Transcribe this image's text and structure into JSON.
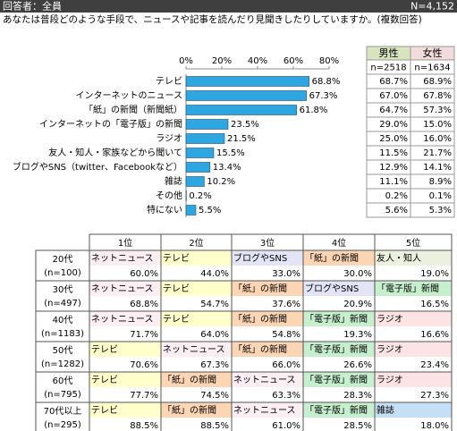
{
  "header": {
    "left": "回答者：全員",
    "right": "N=4,152"
  },
  "question": "あなたは普段どのような手段で、ニュースや記事を読んだり見聞きしたりしていますか。(複数回答)",
  "chart_data": {
    "type": "bar",
    "orientation": "horizontal",
    "categories": [
      "テレビ",
      "インターネットのニュース",
      "「紙」の新聞（新聞紙）",
      "インターネットの「電子版」の新聞",
      "ラジオ",
      "友人・知人・家族などから聞いて",
      "ブログやSNS（twitter、Facebookなど）",
      "雑誌",
      "その他",
      "特にない"
    ],
    "values": [
      68.8,
      67.3,
      61.8,
      23.5,
      21.5,
      15.5,
      13.4,
      10.2,
      0.2,
      5.5
    ],
    "value_labels": [
      "68.8%",
      "67.3%",
      "61.8%",
      "23.5%",
      "21.5%",
      "15.5%",
      "13.4%",
      "10.2%",
      "0.2%",
      "5.5%"
    ],
    "color": "#2ea7e0",
    "xlim": [
      0,
      80
    ],
    "xticks": [
      {
        "value": 0,
        "label": "0%"
      },
      {
        "value": 20,
        "label": "20%"
      },
      {
        "value": 40,
        "label": "40%"
      },
      {
        "value": 60,
        "label": "60%"
      },
      {
        "value": 80,
        "label": "80%"
      }
    ]
  },
  "gender_table": {
    "columns": [
      {
        "name": "男性",
        "n": "n=2518",
        "color": "#d7e4bd",
        "values": [
          "68.7%",
          "67.0%",
          "64.7%",
          "29.0%",
          "25.0%",
          "11.5%",
          "12.9%",
          "11.1%",
          "0.2%",
          "5.6%"
        ]
      },
      {
        "name": "女性",
        "n": "n=1634",
        "color": "#f2dcdb",
        "values": [
          "68.9%",
          "67.8%",
          "57.3%",
          "15.0%",
          "16.0%",
          "21.7%",
          "14.1%",
          "8.9%",
          "0.1%",
          "5.3%"
        ]
      }
    ]
  },
  "rank_table": {
    "headers": [
      "1位",
      "2位",
      "3位",
      "4位",
      "5位"
    ],
    "rows": [
      {
        "age": "20代",
        "n": "(n=100)",
        "cells": [
          {
            "label": "ネットニュース",
            "value": "60.0%",
            "color": "#fdeef4"
          },
          {
            "label": "テレビ",
            "value": "44.0%",
            "color": "#ffffcc"
          },
          {
            "label": "ブログやSNS",
            "value": "33.0%",
            "color": "#e4e4f7"
          },
          {
            "label": "「紙」の新聞",
            "value": "30.0%",
            "color": "#fcd5b5"
          },
          {
            "label": "友人・知人",
            "value": "19.0%",
            "color": "#ebf1de"
          }
        ]
      },
      {
        "age": "30代",
        "n": "(n=497)",
        "cells": [
          {
            "label": "ネットニュース",
            "value": "68.8%",
            "color": "#fdeef4"
          },
          {
            "label": "テレビ",
            "value": "54.7%",
            "color": "#ffffcc"
          },
          {
            "label": "「紙」の新聞",
            "value": "37.6%",
            "color": "#fcd5b5"
          },
          {
            "label": "ブログやSNS",
            "value": "20.9%",
            "color": "#e4e4f7"
          },
          {
            "label": "「電子版」新聞",
            "value": "16.5%",
            "color": "#c6efce"
          }
        ]
      },
      {
        "age": "40代",
        "n": "(n=1183)",
        "cells": [
          {
            "label": "ネットニュース",
            "value": "71.7%",
            "color": "#fdeef4"
          },
          {
            "label": "テレビ",
            "value": "64.0%",
            "color": "#ffffcc"
          },
          {
            "label": "「紙」の新聞",
            "value": "54.8%",
            "color": "#fcd5b5"
          },
          {
            "label": "「電子版」新聞",
            "value": "19.3%",
            "color": "#c6efce"
          },
          {
            "label": "ラジオ",
            "value": "16.6%",
            "color": "#fce4e4"
          }
        ]
      },
      {
        "age": "50代",
        "n": "(n=1282)",
        "cells": [
          {
            "label": "テレビ",
            "value": "70.6%",
            "color": "#ffffcc"
          },
          {
            "label": "ネットニュース",
            "value": "67.3%",
            "color": "#fdeef4"
          },
          {
            "label": "「紙」の新聞",
            "value": "66.0%",
            "color": "#fcd5b5"
          },
          {
            "label": "「電子版」新聞",
            "value": "26.6%",
            "color": "#c6efce"
          },
          {
            "label": "ラジオ",
            "value": "23.4%",
            "color": "#fce4e4"
          }
        ]
      },
      {
        "age": "60代",
        "n": "(n=795)",
        "cells": [
          {
            "label": "テレビ",
            "value": "77.7%",
            "color": "#ffffcc"
          },
          {
            "label": "「紙」の新聞",
            "value": "74.5%",
            "color": "#fcd5b5"
          },
          {
            "label": "ネットニュース",
            "value": "63.3%",
            "color": "#fdeef4"
          },
          {
            "label": "「電子版」新聞",
            "value": "28.3%",
            "color": "#c6efce"
          },
          {
            "label": "ラジオ",
            "value": "27.3%",
            "color": "#fce4e4"
          }
        ]
      },
      {
        "age": "70代以上",
        "n": "(n=295)",
        "cells": [
          {
            "label": "テレビ",
            "value": "88.5%",
            "color": "#ffffcc"
          },
          {
            "label": "「紙」の新聞",
            "value": "88.5%",
            "color": "#fcd5b5"
          },
          {
            "label": "ネットニュース",
            "value": "61.0%",
            "color": "#fdeef4"
          },
          {
            "label": "「電子版」新聞",
            "value": "28.5%",
            "color": "#c6efce"
          },
          {
            "label": "雑誌",
            "value": "18.0%",
            "color": "#c5dff5"
          }
        ]
      }
    ]
  }
}
